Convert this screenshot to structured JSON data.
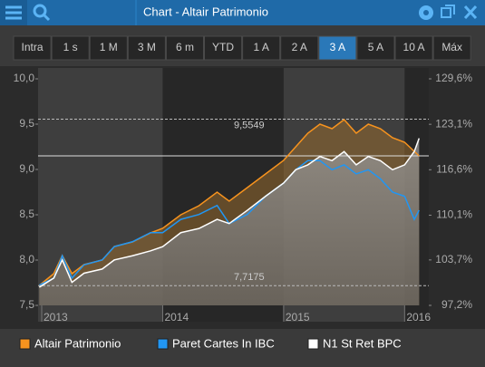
{
  "window": {
    "title": "Chart - Altair Patrimonio",
    "range_buttons": [
      "Intra",
      "1 s",
      "1 M",
      "3 M",
      "6 m",
      "YTD",
      "1 A",
      "2 A",
      "3 A",
      "5 A",
      "10 A",
      "Máx"
    ],
    "active_button": 8
  },
  "chart_data": {
    "type": "line",
    "x": [
      2012.98,
      2013.1,
      2013.17,
      2013.25,
      2013.35,
      2013.5,
      2013.6,
      2013.75,
      2013.9,
      2014.0,
      2014.15,
      2014.3,
      2014.45,
      2014.55,
      2014.7,
      2014.85,
      2015.0,
      2015.1,
      2015.2,
      2015.3,
      2015.4,
      2015.5,
      2015.6,
      2015.7,
      2015.8,
      2015.9,
      2016.0,
      2016.08,
      2016.12
    ],
    "xlim": [
      2012.97,
      2016.2
    ],
    "xticks": [
      2013,
      2014,
      2015,
      2016
    ],
    "ylim": [
      7.5,
      10.0
    ],
    "yticks": [
      {
        "value": 7.5,
        "label": "7,5"
      },
      {
        "value": 8.0,
        "label": "8,0"
      },
      {
        "value": 8.5,
        "label": "8,5"
      },
      {
        "value": 9.0,
        "label": "9,0"
      },
      {
        "value": 9.5,
        "label": "9,5"
      },
      {
        "value": 10.0,
        "label": "10,0"
      }
    ],
    "y2lim": [
      97.2,
      129.6
    ],
    "y2ticks": [
      {
        "value": 97.2,
        "label": "97,2%"
      },
      {
        "value": 103.7,
        "label": "103,7%"
      },
      {
        "value": 110.1,
        "label": "110,1%"
      },
      {
        "value": 116.6,
        "label": "116,6%"
      },
      {
        "value": 123.1,
        "label": "123,1%"
      },
      {
        "value": 129.6,
        "label": "129,6%"
      }
    ],
    "reference_lines": [
      {
        "value": 9.5549,
        "label": "9,5549"
      },
      {
        "value": 7.7175,
        "label": "7,7175"
      }
    ],
    "series": [
      {
        "name": "Altair Patrimonio",
        "color": "#f7931e",
        "values": [
          7.72,
          7.85,
          8.05,
          7.85,
          7.95,
          8.0,
          8.15,
          8.2,
          8.3,
          8.35,
          8.5,
          8.6,
          8.75,
          8.65,
          8.8,
          8.95,
          9.1,
          9.25,
          9.4,
          9.5,
          9.45,
          9.55,
          9.4,
          9.5,
          9.45,
          9.35,
          9.3,
          9.2,
          9.15
        ]
      },
      {
        "name": "Paret Cartes In IBC",
        "color": "#2196f3",
        "axis": "y2",
        "values": [
          100.1,
          101.1,
          104.3,
          101.1,
          103.0,
          103.7,
          105.6,
          106.3,
          107.6,
          107.6,
          109.5,
          110.2,
          111.5,
          108.9,
          110.2,
          112.8,
          114.7,
          116.6,
          117.9,
          117.9,
          116.6,
          117.3,
          116.0,
          116.6,
          115.3,
          113.4,
          112.8,
          109.5,
          110.8
        ]
      },
      {
        "name": "N1 St Ret BPC",
        "color": "#ffffff",
        "axis": "y2",
        "values": [
          99.8,
          101.1,
          103.7,
          100.5,
          101.8,
          102.4,
          103.7,
          104.3,
          105.0,
          105.6,
          107.6,
          108.2,
          109.5,
          108.9,
          110.8,
          112.8,
          114.7,
          116.6,
          117.3,
          118.5,
          117.9,
          119.2,
          117.3,
          118.5,
          117.9,
          116.6,
          117.3,
          119.2,
          121.1
        ]
      }
    ]
  }
}
